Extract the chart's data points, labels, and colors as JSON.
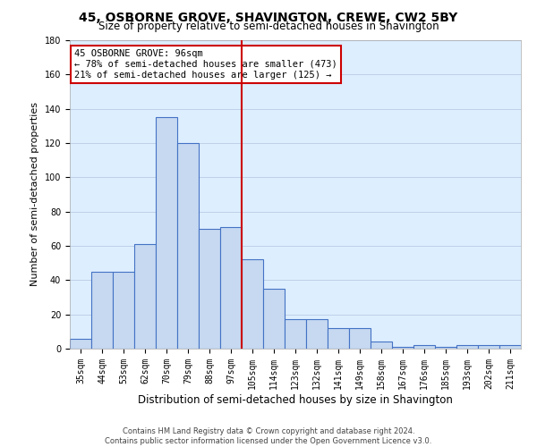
{
  "title": "45, OSBORNE GROVE, SHAVINGTON, CREWE, CW2 5BY",
  "subtitle": "Size of property relative to semi-detached houses in Shavington",
  "xlabel": "Distribution of semi-detached houses by size in Shavington",
  "ylabel": "Number of semi-detached properties",
  "categories": [
    "35sqm",
    "44sqm",
    "53sqm",
    "62sqm",
    "70sqm",
    "79sqm",
    "88sqm",
    "97sqm",
    "105sqm",
    "114sqm",
    "123sqm",
    "132sqm",
    "141sqm",
    "149sqm",
    "158sqm",
    "167sqm",
    "176sqm",
    "185sqm",
    "193sqm",
    "202sqm",
    "211sqm"
  ],
  "values": [
    6,
    45,
    45,
    61,
    135,
    120,
    70,
    71,
    52,
    35,
    17,
    17,
    12,
    12,
    4,
    1,
    2,
    1,
    2,
    2,
    2
  ],
  "bar_color": "#c6d9f1",
  "bar_edge_color": "#4472c4",
  "bar_linewidth": 0.8,
  "red_line_index": 7,
  "red_line_color": "#cc0000",
  "annotation_line1": "45 OSBORNE GROVE: 96sqm",
  "annotation_line2": "← 78% of semi-detached houses are smaller (473)",
  "annotation_line3": "21% of semi-detached houses are larger (125) →",
  "annotation_box_color": "#cc0000",
  "ylim": [
    0,
    180
  ],
  "yticks": [
    0,
    20,
    40,
    60,
    80,
    100,
    120,
    140,
    160,
    180
  ],
  "grid_color": "#b8cce4",
  "background_color": "#ddeeff",
  "footer_line1": "Contains HM Land Registry data © Crown copyright and database right 2024.",
  "footer_line2": "Contains public sector information licensed under the Open Government Licence v3.0.",
  "title_fontsize": 10,
  "subtitle_fontsize": 8.5,
  "tick_fontsize": 7,
  "ylabel_fontsize": 8,
  "xlabel_fontsize": 8.5,
  "annotation_fontsize": 7.5,
  "footer_fontsize": 6
}
